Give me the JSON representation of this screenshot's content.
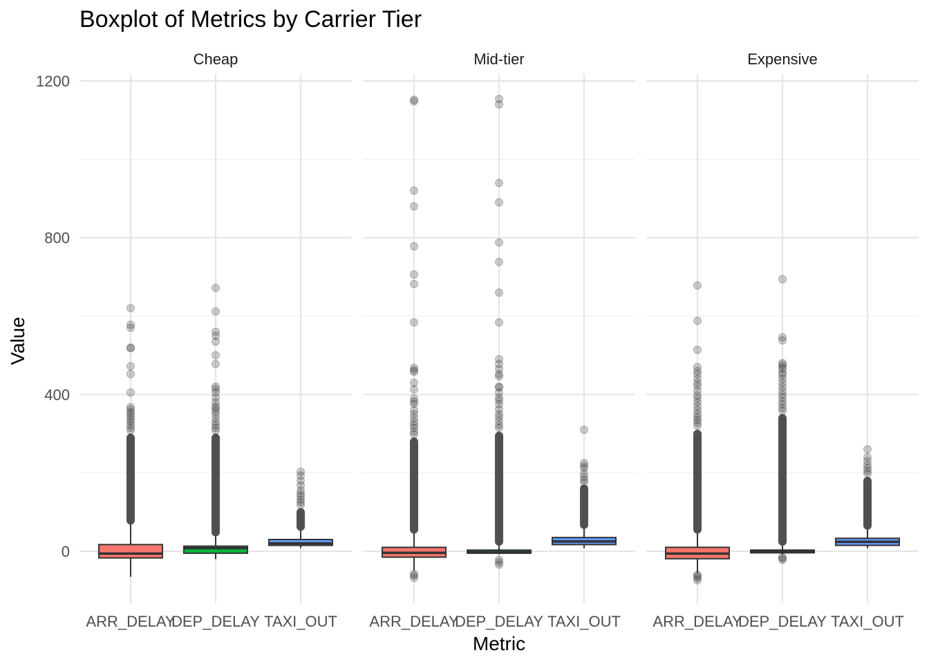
{
  "chart_data": {
    "type": "box",
    "title": "Boxplot of Metrics by Carrier Tier",
    "xlabel": "Metric",
    "ylabel": "Value",
    "ylim": [
      -130,
      1210
    ],
    "y_ticks": [
      0,
      400,
      800,
      1200
    ],
    "grid": true,
    "legend": "none",
    "categories": [
      "ARR_DELAY",
      "DEP_DELAY",
      "TAXI_OUT"
    ],
    "colors": {
      "ARR_DELAY": "#F8766D",
      "DEP_DELAY": "#00BA38",
      "TAXI_OUT": "#619CFF"
    },
    "panels": [
      {
        "facet": "Cheap",
        "boxes": [
          {
            "metric": "ARR_DELAY",
            "whisker_low": -65,
            "q1": -17,
            "median": -6,
            "q3": 17,
            "whisker_high": 68,
            "outlier_band": [
              68,
              300
            ],
            "outliers": [
              620,
              578,
              570,
              520,
              518,
              472,
              452,
              405,
              368,
              362,
              355,
              350,
              343,
              336,
              330,
              322,
              315,
              308
            ]
          },
          {
            "metric": "DEP_DELAY",
            "whisker_low": -20,
            "q1": -5,
            "median": 8,
            "q3": 13,
            "whisker_high": 38,
            "outlier_band": [
              38,
              300
            ],
            "outliers": [
              672,
              612,
              560,
              550,
              535,
              500,
              478,
              420,
              414,
              405,
              392,
              380,
              370,
              365,
              358,
              350,
              340,
              330,
              322,
              315,
              308
            ]
          },
          {
            "metric": "TAXI_OUT",
            "whisker_low": 8,
            "q1": 15,
            "median": 20,
            "q3": 30,
            "whisker_high": 52,
            "outlier_band": [
              52,
              110
            ],
            "outliers": [
              203,
              193,
              180,
              168,
              155,
              147,
              140,
              132,
              125,
              118
            ]
          }
        ]
      },
      {
        "facet": "Mid-tier",
        "boxes": [
          {
            "metric": "ARR_DELAY",
            "whisker_low": -50,
            "q1": -15,
            "median": -4,
            "q3": 10,
            "whisker_high": 45,
            "outlier_band": [
              45,
              290
            ],
            "outliers": [
              1152,
              1148,
              920,
              880,
              778,
              706,
              682,
              584,
              468,
              462,
              458,
              430,
              413,
              390,
              382,
              376,
              360,
              350,
              340,
              330,
              322,
              315,
              305,
              298,
              -58,
              -62,
              -68
            ]
          },
          {
            "metric": "DEP_DELAY",
            "whisker_low": -8,
            "q1": -5,
            "median": -2,
            "q3": 3,
            "whisker_high": 14,
            "outlier_band": [
              14,
              305
            ],
            "outliers": [
              1154,
              1140,
              940,
              890,
              788,
              738,
              660,
              584,
              490,
              478,
              465,
              452,
              446,
              420,
              418,
              405,
              392,
              385,
              375,
              362,
              350,
              342,
              332,
              322,
              315,
              -22,
              -28,
              -34
            ]
          },
          {
            "metric": "TAXI_OUT",
            "whisker_low": 8,
            "q1": 17,
            "median": 25,
            "q3": 35,
            "whisker_high": 57,
            "outlier_band": [
              57,
              170
            ],
            "outliers": [
              310,
              225,
              218,
              212,
              198,
              190,
              182,
              175
            ]
          }
        ]
      },
      {
        "facet": "Expensive",
        "boxes": [
          {
            "metric": "ARR_DELAY",
            "whisker_low": -55,
            "q1": -19,
            "median": -6,
            "q3": 10,
            "whisker_high": 45,
            "outlier_band": [
              45,
              310
            ],
            "outliers": [
              678,
              588,
              514,
              470,
              460,
              452,
              440,
              430,
              422,
              410,
              398,
              390,
              380,
              370,
              360,
              350,
              342,
              335,
              328,
              320,
              -60,
              -64,
              -68,
              -74
            ]
          },
          {
            "metric": "DEP_DELAY",
            "whisker_low": -8,
            "q1": -4,
            "median": -1,
            "q3": 3,
            "whisker_high": 14,
            "outlier_band": [
              14,
              350
            ],
            "outliers": [
              694,
              546,
              538,
              480,
              476,
              470,
              465,
              455,
              450,
              440,
              430,
              420,
              410,
              400,
              392,
              382,
              375,
              365,
              358,
              -15,
              -18,
              -22
            ]
          },
          {
            "metric": "TAXI_OUT",
            "whisker_low": 8,
            "q1": 15,
            "median": 24,
            "q3": 33,
            "whisker_high": 55,
            "outlier_band": [
              55,
              190
            ],
            "outliers": [
              260,
              240,
              230,
              220,
              212,
              205,
              198
            ]
          }
        ]
      }
    ]
  }
}
